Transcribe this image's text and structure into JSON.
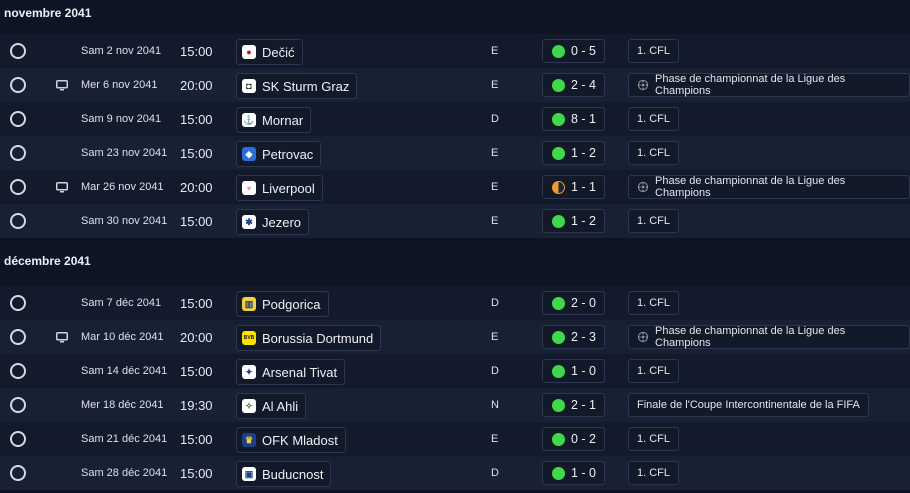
{
  "months": [
    {
      "title": "novembre 2041",
      "matches": [
        {
          "date": "Sam 2 nov 2041",
          "time": "15:00",
          "tv": false,
          "team": "Dečić",
          "crest": {
            "bg": "#ffffff",
            "fg": "#c8102e",
            "sym": "●"
          },
          "venue": "E",
          "result": "win",
          "score": "0 - 5",
          "competition": "1. CFL",
          "cl": false
        },
        {
          "date": "Mer 6 nov 2041",
          "time": "20:00",
          "tv": true,
          "team": "SK Sturm Graz",
          "crest": {
            "bg": "#ffffff",
            "fg": "#111111",
            "sym": "◘"
          },
          "venue": "E",
          "result": "win",
          "score": "2 - 4",
          "competition": "Phase de championnat de la Ligue des Champions",
          "cl": true
        },
        {
          "date": "Sam 9 nov 2041",
          "time": "15:00",
          "tv": false,
          "team": "Mornar",
          "crest": {
            "bg": "#ffffff",
            "fg": "#1b4fa0",
            "sym": "⚓"
          },
          "venue": "D",
          "result": "win",
          "score": "8 - 1",
          "competition": "1. CFL",
          "cl": false
        },
        {
          "date": "Sam 23 nov 2041",
          "time": "15:00",
          "tv": false,
          "team": "Petrovac",
          "crest": {
            "bg": "#2a6fd6",
            "fg": "#ffffff",
            "sym": "◆"
          },
          "venue": "E",
          "result": "win",
          "score": "1 - 2",
          "competition": "1. CFL",
          "cl": false
        },
        {
          "date": "Mar 26 nov 2041",
          "time": "20:00",
          "tv": true,
          "team": "Liverpool",
          "crest": {
            "bg": "#ffffff",
            "fg": "#c8102e",
            "sym": "♆"
          },
          "venue": "E",
          "result": "draw",
          "score": "1 - 1",
          "competition": "Phase de championnat de la Ligue des Champions",
          "cl": true
        },
        {
          "date": "Sam 30 nov 2041",
          "time": "15:00",
          "tv": false,
          "team": "Jezero",
          "crest": {
            "bg": "#ffffff",
            "fg": "#1b3f8a",
            "sym": "✱"
          },
          "venue": "E",
          "result": "win",
          "score": "1 - 2",
          "competition": "1. CFL",
          "cl": false
        }
      ]
    },
    {
      "title": "décembre 2041",
      "matches": [
        {
          "date": "Sam 7 déc 2041",
          "time": "15:00",
          "tv": false,
          "team": "Podgorica",
          "crest": {
            "bg": "#f2d23a",
            "fg": "#1b3f8a",
            "sym": "▥"
          },
          "venue": "D",
          "result": "win",
          "score": "2 - 0",
          "competition": "1. CFL",
          "cl": false
        },
        {
          "date": "Mar 10 déc 2041",
          "time": "20:00",
          "tv": true,
          "team": "Borussia Dortmund",
          "crest": {
            "bg": "#fde100",
            "fg": "#111111",
            "sym": "BVB"
          },
          "venue": "E",
          "result": "win",
          "score": "2 - 3",
          "competition": "Phase de championnat de la Ligue des Champions",
          "cl": true
        },
        {
          "date": "Sam 14 déc 2041",
          "time": "15:00",
          "tv": false,
          "team": "Arsenal Tivat",
          "crest": {
            "bg": "#ffffff",
            "fg": "#1b3f8a",
            "sym": "✦"
          },
          "venue": "D",
          "result": "win",
          "score": "1 - 0",
          "competition": "1. CFL",
          "cl": false
        },
        {
          "date": "Mer 18 déc 2041",
          "time": "19:30",
          "tv": false,
          "team": "Al Ahli",
          "crest": {
            "bg": "#ffffff",
            "fg": "#1e7a3a",
            "sym": "✧"
          },
          "venue": "N",
          "result": "win",
          "score": "2 - 1",
          "competition": "Finale de l'Coupe Intercontinentale de la FIFA",
          "cl": false
        },
        {
          "date": "Sam 21 déc 2041",
          "time": "15:00",
          "tv": false,
          "team": "OFK Mladost",
          "crest": {
            "bg": "#1b3f8a",
            "fg": "#f2d23a",
            "sym": "♛"
          },
          "venue": "E",
          "result": "win",
          "score": "0 - 2",
          "competition": "1. CFL",
          "cl": false
        },
        {
          "date": "Sam 28 déc 2041",
          "time": "15:00",
          "tv": false,
          "team": "Buducnost",
          "crest": {
            "bg": "#ffffff",
            "fg": "#1b3f8a",
            "sym": "▣"
          },
          "venue": "D",
          "result": "win",
          "score": "1 - 0",
          "competition": "1. CFL",
          "cl": false
        }
      ]
    }
  ],
  "colors": {
    "win": "#3fd84a",
    "draw": "#f29a2e",
    "background": "#0f1424"
  }
}
